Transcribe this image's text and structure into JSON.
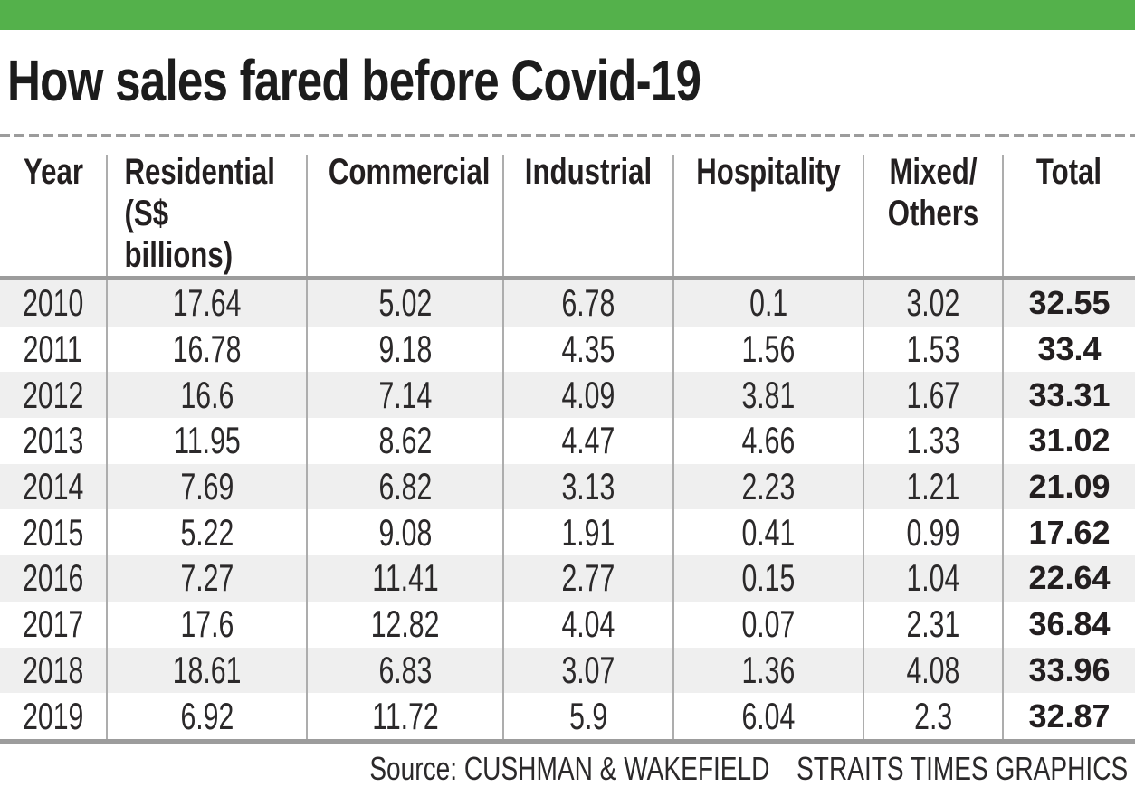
{
  "title": "How sales fared before Covid-19",
  "colors": {
    "accent_green": "#54b14b",
    "row_stripe": "#efefef",
    "rule_gray": "#9c9c9c",
    "divider_gray": "#adadad",
    "text_dark": "#231f20"
  },
  "table": {
    "columns": [
      {
        "id": "year",
        "lines": [
          "Year"
        ],
        "align": "center"
      },
      {
        "id": "residential",
        "lines": [
          "Residential",
          "(S$ billions)"
        ],
        "align": "left"
      },
      {
        "id": "commercial",
        "lines": [
          "Commercial"
        ],
        "align": "center"
      },
      {
        "id": "industrial",
        "lines": [
          "Industrial"
        ],
        "align": "center"
      },
      {
        "id": "hospitality",
        "lines": [
          "Hospitality"
        ],
        "align": "center"
      },
      {
        "id": "mixed-others",
        "lines": [
          "Mixed/",
          "Others"
        ],
        "align": "center"
      },
      {
        "id": "total",
        "lines": [
          "Total"
        ],
        "align": "center"
      }
    ],
    "rows": [
      {
        "year": "2010",
        "values": [
          "17.64",
          "5.02",
          "6.78",
          "0.1",
          "3.02"
        ],
        "total": "32.55"
      },
      {
        "year": "2011",
        "values": [
          "16.78",
          "9.18",
          "4.35",
          "1.56",
          "1.53"
        ],
        "total": "33.4"
      },
      {
        "year": "2012",
        "values": [
          "16.6",
          "7.14",
          "4.09",
          "3.81",
          "1.67"
        ],
        "total": "33.31"
      },
      {
        "year": "2013",
        "values": [
          "11.95",
          "8.62",
          "4.47",
          "4.66",
          "1.33"
        ],
        "total": "31.02"
      },
      {
        "year": "2014",
        "values": [
          "7.69",
          "6.82",
          "3.13",
          "2.23",
          "1.21"
        ],
        "total": "21.09"
      },
      {
        "year": "2015",
        "values": [
          "5.22",
          "9.08",
          "1.91",
          "0.41",
          "0.99"
        ],
        "total": "17.62"
      },
      {
        "year": "2016",
        "values": [
          "7.27",
          "11.41",
          "2.77",
          "0.15",
          "1.04"
        ],
        "total": "22.64"
      },
      {
        "year": "2017",
        "values": [
          "17.6",
          "12.82",
          "4.04",
          "0.07",
          "2.31"
        ],
        "total": "36.84"
      },
      {
        "year": "2018",
        "values": [
          "18.61",
          "6.83",
          "3.07",
          "1.36",
          "4.08"
        ],
        "total": "33.96"
      },
      {
        "year": "2019",
        "values": [
          "6.92",
          "11.72",
          "5.9",
          "6.04",
          "2.3"
        ],
        "total": "32.87"
      }
    ]
  },
  "footer": {
    "source": "Source: CUSHMAN & WAKEFIELD",
    "credit": "STRAITS TIMES GRAPHICS"
  },
  "chart_data": {
    "type": "table",
    "title": "How sales fared before Covid-19",
    "unit": "S$ billions",
    "categories": [
      "2010",
      "2011",
      "2012",
      "2013",
      "2014",
      "2015",
      "2016",
      "2017",
      "2018",
      "2019"
    ],
    "series": [
      {
        "name": "Residential (S$ billions)",
        "values": [
          17.64,
          16.78,
          16.6,
          11.95,
          7.69,
          5.22,
          7.27,
          17.6,
          18.61,
          6.92
        ]
      },
      {
        "name": "Commercial",
        "values": [
          5.02,
          9.18,
          7.14,
          8.62,
          6.82,
          9.08,
          11.41,
          12.82,
          6.83,
          11.72
        ]
      },
      {
        "name": "Industrial",
        "values": [
          6.78,
          4.35,
          4.09,
          4.47,
          3.13,
          1.91,
          2.77,
          4.04,
          3.07,
          5.9
        ]
      },
      {
        "name": "Hospitality",
        "values": [
          0.1,
          1.56,
          3.81,
          4.66,
          2.23,
          0.41,
          0.15,
          0.07,
          1.36,
          6.04
        ]
      },
      {
        "name": "Mixed/Others",
        "values": [
          3.02,
          1.53,
          1.67,
          1.33,
          1.21,
          0.99,
          1.04,
          2.31,
          4.08,
          2.3
        ]
      },
      {
        "name": "Total",
        "values": [
          32.55,
          33.4,
          33.31,
          31.02,
          21.09,
          17.62,
          22.64,
          36.84,
          33.96,
          32.87
        ]
      }
    ],
    "source": "CUSHMAN & WAKEFIELD",
    "credit": "STRAITS TIMES GRAPHICS"
  }
}
